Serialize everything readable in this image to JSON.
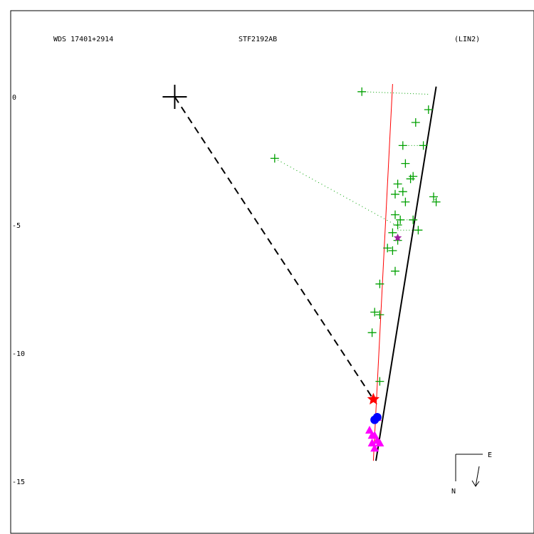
{
  "header": {
    "left": "WDS 17401+2914",
    "center": "STF2192AB",
    "right": "(LIN2)"
  },
  "compass": {
    "east": "E",
    "north": "N"
  },
  "chart_data": {
    "type": "scatter",
    "y_ticks": [
      {
        "value": 0,
        "label": "0"
      },
      {
        "value": -5,
        "label": "-5"
      },
      {
        "value": -10,
        "label": "-10"
      },
      {
        "value": -15,
        "label": "-15"
      }
    ],
    "primary": {
      "x": -8.1,
      "y": 0
    },
    "orbit_line": [
      [
        2.1,
        0.4
      ],
      [
        -0.25,
        -14.2
      ]
    ],
    "red_line": [
      [
        0.4,
        0.5
      ],
      [
        -0.35,
        -14.2
      ]
    ],
    "dashed_line": [
      [
        -8.1,
        0
      ],
      [
        -0.35,
        -11.8
      ]
    ],
    "green_points": [
      [
        -0.8,
        0.2
      ],
      [
        1.8,
        -0.5
      ],
      [
        1.3,
        -1.0
      ],
      [
        0.8,
        -1.9
      ],
      [
        1.6,
        -1.9
      ],
      [
        0.9,
        -2.6
      ],
      [
        1.1,
        -3.2
      ],
      [
        1.2,
        -3.1
      ],
      [
        0.6,
        -3.4
      ],
      [
        0.8,
        -3.7
      ],
      [
        0.5,
        -3.8
      ],
      [
        2.0,
        -3.9
      ],
      [
        2.1,
        -4.1
      ],
      [
        0.9,
        -4.1
      ],
      [
        0.5,
        -4.6
      ],
      [
        0.7,
        -4.8
      ],
      [
        1.2,
        -4.8
      ],
      [
        1.4,
        -5.2
      ],
      [
        0.6,
        -5.0
      ],
      [
        0.4,
        -5.3
      ],
      [
        0.6,
        -5.6
      ],
      [
        0.2,
        -5.9
      ],
      [
        0.4,
        -6.0
      ],
      [
        0.5,
        -6.8
      ],
      [
        -0.1,
        -7.3
      ],
      [
        -0.3,
        -8.4
      ],
      [
        -0.1,
        -8.5
      ],
      [
        -0.4,
        -9.2
      ],
      [
        -0.1,
        -11.1
      ],
      [
        -4.2,
        -2.4
      ]
    ],
    "green_residuals": [
      [
        [
          -0.8,
          0.2
        ],
        [
          1.8,
          0.1
        ]
      ],
      [
        [
          1.6,
          -1.9
        ],
        [
          0.8,
          -1.9
        ]
      ],
      [
        [
          2.0,
          -3.9
        ],
        [
          2.1,
          -4.1
        ]
      ],
      [
        [
          1.2,
          -4.8
        ],
        [
          0.6,
          -4.8
        ]
      ],
      [
        [
          1.4,
          -5.2
        ],
        [
          0.6,
          -5.2
        ]
      ]
    ],
    "dotted_residual": [
      [
        -4.2,
        -2.4
      ],
      [
        0.7,
        -5.1
      ]
    ],
    "magenta_triangles": [
      [
        -0.2,
        -12.5
      ],
      [
        -0.5,
        -13.0
      ],
      [
        -0.3,
        -13.2
      ],
      [
        -0.2,
        -13.4
      ],
      [
        -0.4,
        -13.5
      ],
      [
        -0.3,
        -13.7
      ],
      [
        -0.1,
        -13.5
      ],
      [
        -0.4,
        -13.2
      ]
    ],
    "blue_points": [
      [
        -0.3,
        -12.6
      ],
      [
        -0.2,
        -12.5
      ]
    ],
    "red_star": {
      "x": -0.35,
      "y": -11.8
    },
    "purple_star": {
      "x": 0.6,
      "y": -5.5
    },
    "colors": {
      "green": "#00a000",
      "red": "#ff0000",
      "magenta": "#ff00ff",
      "blue": "#0000ff",
      "purple": "#a020a0",
      "black": "#000000"
    }
  }
}
